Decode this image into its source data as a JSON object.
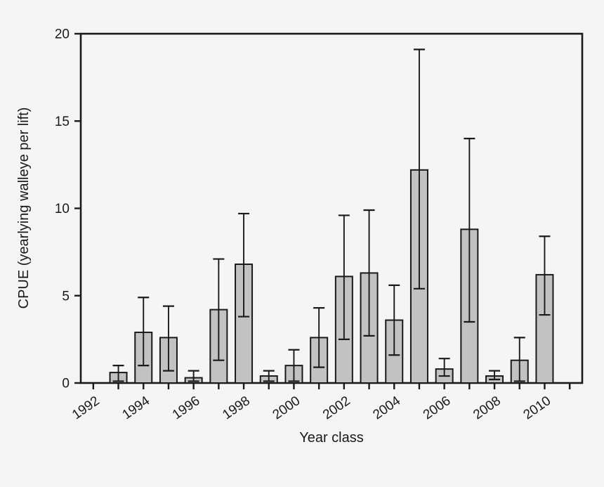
{
  "figure": {
    "background_color": "#f5f5f5",
    "plot_background_color": "#f5f5f5",
    "frame_color": "#1a1a1a",
    "bar_fill_color": "#c2c2c2",
    "bar_edge_color": "#1a1a1a",
    "error_bar_color": "#1a1a1a"
  },
  "chart_data": {
    "type": "bar",
    "title": "",
    "xlabel": "Year class",
    "ylabel": "CPUE (yearlying walleye per lift)",
    "x": [
      1993,
      1994,
      1995,
      1996,
      1997,
      1998,
      1999,
      2000,
      2001,
      2002,
      2003,
      2004,
      2005,
      2006,
      2007,
      2008,
      2009,
      2010
    ],
    "values": [
      0.6,
      2.9,
      2.6,
      0.3,
      4.2,
      6.8,
      0.4,
      1.0,
      2.6,
      6.1,
      6.3,
      3.6,
      12.2,
      0.8,
      8.8,
      0.4,
      1.3,
      6.2
    ],
    "error_high": [
      1.0,
      4.9,
      4.4,
      0.7,
      7.1,
      9.7,
      0.7,
      1.9,
      4.3,
      9.6,
      9.9,
      5.6,
      19.1,
      1.4,
      14.0,
      0.7,
      2.6,
      8.4
    ],
    "error_low": [
      0.1,
      1.0,
      0.7,
      0.1,
      1.3,
      3.8,
      0.1,
      0.1,
      0.9,
      2.5,
      2.7,
      1.6,
      5.4,
      0.4,
      3.5,
      0.2,
      0.1,
      3.9
    ],
    "xlim": [
      1991.5,
      2011.5
    ],
    "ylim": [
      0,
      20
    ],
    "y_ticks": [
      0,
      5,
      10,
      15,
      20
    ],
    "x_ticks": [
      1992,
      1993,
      1994,
      1995,
      1996,
      1997,
      1998,
      1999,
      2000,
      2001,
      2002,
      2003,
      2004,
      2005,
      2006,
      2007,
      2008,
      2009,
      2010,
      2010.9999,
      2011
    ],
    "x_tick_labels": [
      "1992",
      "1994",
      "1996",
      "1998",
      "2000",
      "2002",
      "2004",
      "2006",
      "2008",
      "2010"
    ],
    "grid": false,
    "legend": "none",
    "x_tick_label_rotation_deg": -35
  }
}
